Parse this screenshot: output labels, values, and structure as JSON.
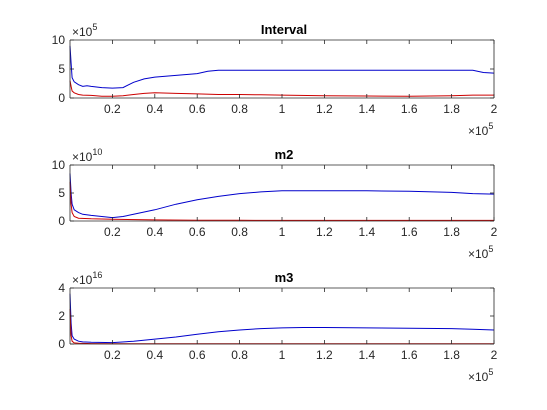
{
  "chart_data": [
    {
      "type": "line",
      "title": "Interval",
      "xlabel": "",
      "ylabel": "",
      "x_exponent_label": "×10",
      "x_exponent": "5",
      "y_exponent_label": "×10",
      "y_exponent": "5",
      "xlim": [
        0,
        2
      ],
      "ylim": [
        0,
        10
      ],
      "xticks": [
        "0.2",
        "0.4",
        "0.6",
        "0.8",
        "1",
        "1.2",
        "1.4",
        "1.6",
        "1.8",
        "2"
      ],
      "yticks": [
        "0",
        "5",
        "10"
      ],
      "series": [
        {
          "color": "#0000cc",
          "x": [
            0.0,
            0.005,
            0.01,
            0.02,
            0.04,
            0.06,
            0.08,
            0.1,
            0.15,
            0.2,
            0.25,
            0.3,
            0.35,
            0.4,
            0.5,
            0.6,
            0.65,
            0.7,
            0.8,
            0.9,
            1.0,
            1.2,
            1.4,
            1.6,
            1.8,
            1.9,
            1.95,
            2.0
          ],
          "values": [
            9.0,
            6.0,
            3.5,
            2.8,
            2.3,
            2.0,
            2.1,
            2.0,
            1.8,
            1.7,
            1.8,
            2.7,
            3.3,
            3.6,
            3.9,
            4.2,
            4.6,
            4.8,
            4.8,
            4.8,
            4.8,
            4.8,
            4.8,
            4.8,
            4.8,
            4.8,
            4.4,
            4.3
          ]
        },
        {
          "color": "#cc0000",
          "x": [
            0.0,
            0.005,
            0.01,
            0.02,
            0.04,
            0.06,
            0.1,
            0.15,
            0.2,
            0.25,
            0.3,
            0.35,
            0.4,
            0.5,
            0.6,
            0.7,
            0.8,
            0.9,
            1.0,
            1.2,
            1.4,
            1.6,
            1.8,
            1.9,
            2.0
          ],
          "values": [
            3.0,
            2.0,
            1.2,
            0.9,
            0.6,
            0.5,
            0.45,
            0.3,
            0.3,
            0.4,
            0.6,
            0.8,
            0.9,
            0.8,
            0.7,
            0.6,
            0.6,
            0.55,
            0.5,
            0.4,
            0.35,
            0.3,
            0.4,
            0.5,
            0.5
          ]
        }
      ]
    },
    {
      "type": "line",
      "title": "m2",
      "xlabel": "",
      "ylabel": "",
      "x_exponent_label": "×10",
      "x_exponent": "5",
      "y_exponent_label": "×10",
      "y_exponent": "10",
      "xlim": [
        0,
        2
      ],
      "ylim": [
        0,
        10
      ],
      "xticks": [
        "0.2",
        "0.4",
        "0.6",
        "0.8",
        "1",
        "1.2",
        "1.4",
        "1.6",
        "1.8",
        "2"
      ],
      "yticks": [
        "0",
        "5",
        "10"
      ],
      "series": [
        {
          "color": "#0000cc",
          "x": [
            0.0,
            0.005,
            0.01,
            0.02,
            0.04,
            0.06,
            0.1,
            0.15,
            0.2,
            0.25,
            0.3,
            0.4,
            0.5,
            0.6,
            0.7,
            0.8,
            0.9,
            1.0,
            1.1,
            1.2,
            1.4,
            1.6,
            1.8,
            1.9,
            2.0
          ],
          "values": [
            8.5,
            5.0,
            3.0,
            2.0,
            1.5,
            1.2,
            1.0,
            0.8,
            0.6,
            0.8,
            1.2,
            2.0,
            3.0,
            3.8,
            4.4,
            4.9,
            5.2,
            5.4,
            5.4,
            5.4,
            5.4,
            5.3,
            5.1,
            4.9,
            4.8
          ]
        },
        {
          "color": "#cc0000",
          "x": [
            0.0,
            0.005,
            0.01,
            0.02,
            0.04,
            0.1,
            0.2,
            0.4,
            0.6,
            0.8,
            1.0,
            1.2,
            1.4,
            1.6,
            1.8,
            2.0
          ],
          "values": [
            7.0,
            3.0,
            1.5,
            0.8,
            0.5,
            0.4,
            0.3,
            0.2,
            0.15,
            0.12,
            0.1,
            0.1,
            0.1,
            0.1,
            0.1,
            0.1
          ]
        }
      ]
    },
    {
      "type": "line",
      "title": "m3",
      "xlabel": "",
      "ylabel": "",
      "x_exponent_label": "×10",
      "x_exponent": "5",
      "y_exponent_label": "×10",
      "y_exponent": "16",
      "xlim": [
        0,
        2
      ],
      "ylim": [
        0,
        4
      ],
      "xticks": [
        "0.2",
        "0.4",
        "0.6",
        "0.8",
        "1",
        "1.2",
        "1.4",
        "1.6",
        "1.8",
        "2"
      ],
      "yticks": [
        "0",
        "2",
        "4"
      ],
      "series": [
        {
          "color": "#0000cc",
          "x": [
            0.0,
            0.005,
            0.01,
            0.02,
            0.04,
            0.06,
            0.1,
            0.2,
            0.3,
            0.4,
            0.5,
            0.6,
            0.7,
            0.8,
            0.9,
            1.0,
            1.1,
            1.2,
            1.4,
            1.6,
            1.8,
            1.9,
            2.0
          ],
          "values": [
            3.6,
            1.5,
            0.6,
            0.35,
            0.2,
            0.15,
            0.12,
            0.1,
            0.2,
            0.35,
            0.5,
            0.7,
            0.88,
            1.0,
            1.1,
            1.15,
            1.18,
            1.18,
            1.15,
            1.12,
            1.1,
            1.05,
            1.0
          ]
        },
        {
          "color": "#cc0000",
          "x": [
            0.0,
            0.005,
            0.01,
            0.02,
            0.04,
            0.1,
            0.2,
            0.4,
            0.6,
            0.8,
            1.0,
            1.2,
            1.4,
            1.6,
            1.8,
            2.0
          ],
          "values": [
            2.5,
            0.6,
            0.2,
            0.08,
            0.05,
            0.03,
            0.02,
            0.02,
            0.02,
            0.02,
            0.02,
            0.02,
            0.02,
            0.02,
            0.02,
            0.02
          ]
        }
      ]
    }
  ]
}
